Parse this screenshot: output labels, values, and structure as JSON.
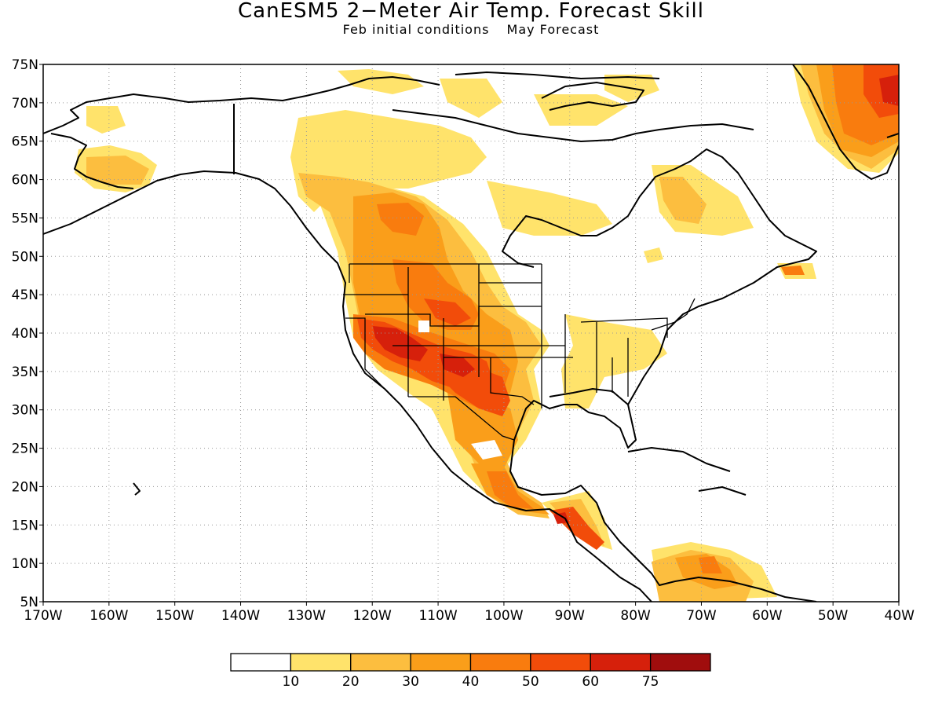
{
  "title": "CanESM5 2−Meter Air Temp. Forecast Skill",
  "subtitle": {
    "initial": "Feb initial conditions",
    "forecast": "May Forecast"
  },
  "map": {
    "lat_labels": [
      "75N",
      "70N",
      "65N",
      "60N",
      "55N",
      "50N",
      "45N",
      "40N",
      "35N",
      "30N",
      "25N",
      "20N",
      "15N",
      "10N",
      "5N"
    ],
    "lon_labels": [
      "170W",
      "160W",
      "150W",
      "140W",
      "130W",
      "120W",
      "110W",
      "100W",
      "90W",
      "80W",
      "70W",
      "60W",
      "50W",
      "40W"
    ],
    "lon_range": [
      -170,
      -40
    ],
    "lat_range": [
      5,
      75
    ],
    "gridlines": true
  },
  "legend": {
    "colors": [
      "#ffffff",
      "#ffe36b",
      "#fcbe3f",
      "#fa9e1a",
      "#f97c0e",
      "#f24c0a",
      "#d6200b",
      "#a00d0d"
    ],
    "ticks": [
      "10",
      "20",
      "30",
      "40",
      "50",
      "60",
      "75"
    ]
  }
}
